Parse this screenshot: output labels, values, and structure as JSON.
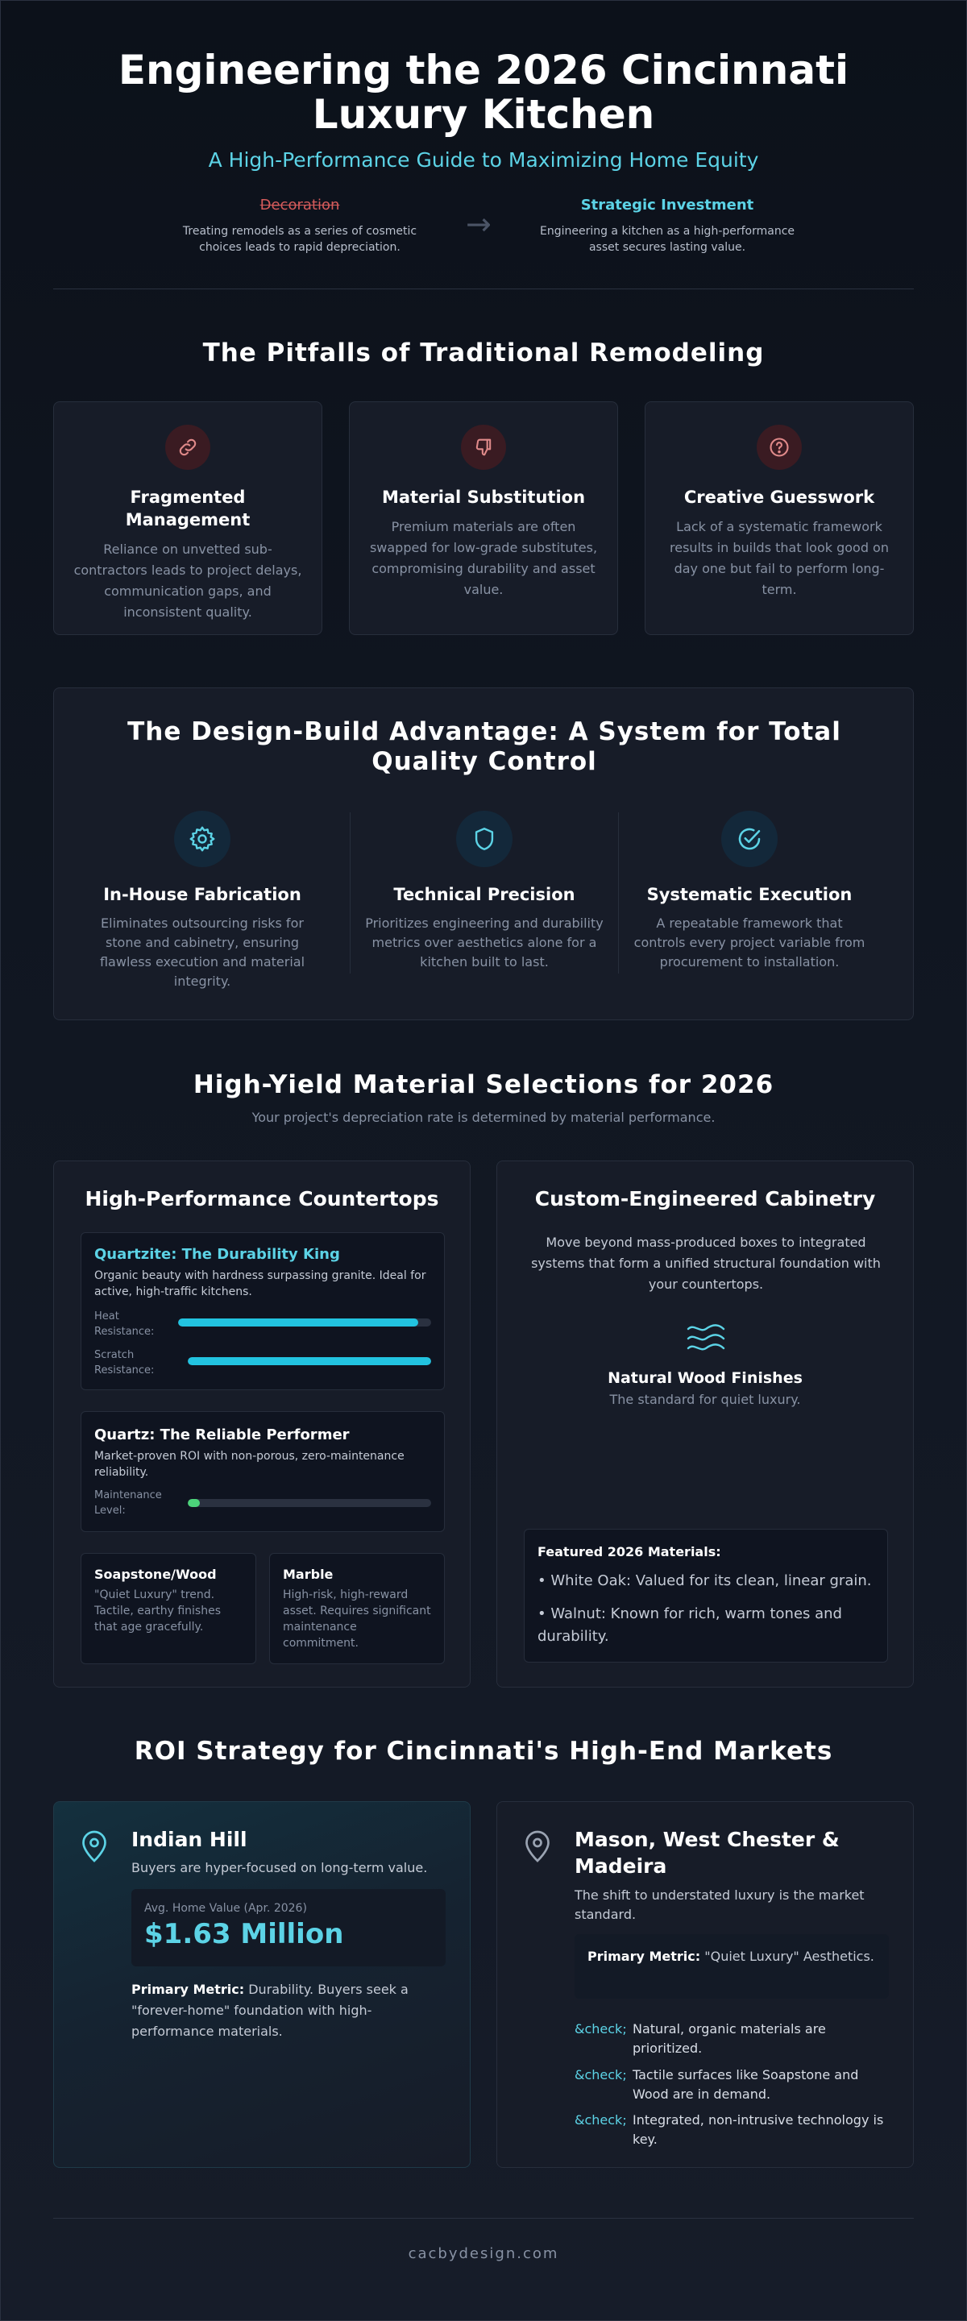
{
  "header": {
    "title": "Engineering the 2026 Cincinnati Luxury Kitchen",
    "subtitle": "A High-Performance Guide to Maximizing Home Equity",
    "left_label": "Decoration",
    "left_desc": "Treating remodels as a series of cosmetic choices leads to rapid depreciation.",
    "arrow": "→",
    "right_label": "Strategic Investment",
    "right_desc": "Engineering a kitchen as a high-performance asset secures lasting value."
  },
  "pitfalls": {
    "title": "The Pitfalls of Traditional Remodeling",
    "items": [
      {
        "icon": "broken-link-icon",
        "title": "Fragmented Management",
        "desc": "Reliance on unvetted sub-contractors leads to project delays, communication gaps, and inconsistent quality."
      },
      {
        "icon": "thumbs-down-icon",
        "title": "Material Substitution",
        "desc": "Premium materials are often swapped for low-grade substitutes, compromising durability and asset value."
      },
      {
        "icon": "question-icon",
        "title": "Creative Guesswork",
        "desc": "Lack of a systematic framework results in builds that look good on day one but fail to perform long-term."
      }
    ]
  },
  "design_build": {
    "title": "The Design-Build Advantage: A System for Total Quality Control",
    "items": [
      {
        "icon": "gear-icon",
        "title": "In-House Fabrication",
        "desc": "Eliminates outsourcing risks for stone and cabinetry, ensuring flawless execution and material integrity."
      },
      {
        "icon": "shield-icon",
        "title": "Technical Precision",
        "desc": "Prioritizes engineering and durability metrics over aesthetics alone for a kitchen built to last."
      },
      {
        "icon": "check-circle-icon",
        "title": "Systematic Execution",
        "desc": "A repeatable framework that controls every project variable from procurement to installation."
      }
    ]
  },
  "materials": {
    "title": "High-Yield Material Selections for 2026",
    "subtitle": "Your project's depreciation rate is determined by material performance.",
    "countertops": {
      "title": "High-Performance Countertops",
      "quartzite": {
        "title": "Quartzite: The Durability King",
        "desc": "Organic beauty with hardness surpassing granite. Ideal for active, high-traffic kitchens.",
        "metrics": [
          {
            "label": "Heat Resistance:",
            "value": 0.95
          },
          {
            "label": "Scratch Resistance:",
            "value": 1.0
          }
        ]
      },
      "quartz": {
        "title": "Quartz: The Reliable Performer",
        "desc": "Market-proven ROI with non-porous, zero-maintenance reliability.",
        "metrics": [
          {
            "label": "Maintenance Level:",
            "value": 0.05
          }
        ]
      },
      "soapstone": {
        "title": "Soapstone/Wood",
        "desc": "\"Quiet Luxury\" trend. Tactile, earthy finishes that age gracefully."
      },
      "marble": {
        "title": "Marble",
        "desc": "High-risk, high-reward asset. Requires significant maintenance commitment."
      }
    },
    "cabinetry": {
      "title": "Custom-Engineered Cabinetry",
      "desc": "Move beyond mass-produced boxes to integrated systems that form a unified structural foundation with your countertops.",
      "finish_title": "Natural Wood Finishes",
      "finish_desc": "The standard for quiet luxury.",
      "featured_title": "Featured 2026 Materials:",
      "featured": [
        "• White Oak: Valued for its clean, linear grain.",
        "• Walnut: Known for rich, warm tones and durability."
      ]
    }
  },
  "roi": {
    "title": "ROI Strategy for Cincinnati's High-End Markets",
    "indian_hill": {
      "title": "Indian Hill",
      "desc": "Buyers are hyper-focused on long-term value.",
      "stat_label": "Avg. Home Value (Apr. 2026)",
      "stat_value": "$1.63 Million",
      "metric_label": "Primary Metric:",
      "metric_text": "Durability. Buyers seek a \"forever-home\" foundation with high-performance materials."
    },
    "mason": {
      "title": "Mason, West Chester & Madeira",
      "desc": "The shift to understated luxury is the market standard.",
      "metric_label": "Primary Metric:",
      "metric_text": "\"Quiet Luxury\" Aesthetics.",
      "check_glyph": "&check;",
      "checks": [
        "Natural, organic materials are prioritized.",
        "Tactile surfaces like Soapstone and Wood are in demand.",
        "Integrated, non-intrusive technology is key."
      ]
    }
  },
  "footer": {
    "text": "cacbydesign.com"
  },
  "colors": {
    "accent": "#5cd3e6",
    "bar": "#22c3e0",
    "maintenance": "#4cd37a",
    "danger": "#d45b5b"
  }
}
